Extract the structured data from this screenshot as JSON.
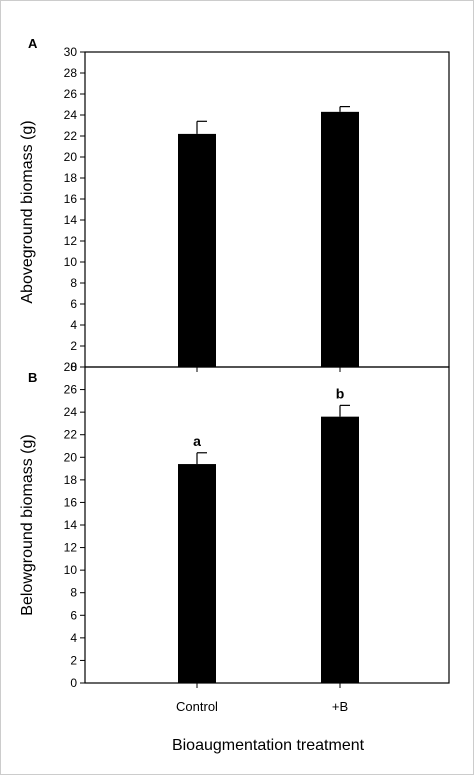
{
  "chart_data": [
    {
      "panel": "A",
      "type": "bar",
      "categories": [
        "Control",
        "+B"
      ],
      "values": [
        22.2,
        24.3
      ],
      "errors": [
        1.2,
        0.5
      ],
      "ylabel": "Aboveground biomass (g)",
      "ylim": [
        0,
        30
      ],
      "yticks": [
        0,
        2,
        4,
        6,
        8,
        10,
        12,
        14,
        16,
        18,
        20,
        22,
        24,
        26,
        28,
        30
      ],
      "significance": [
        "",
        ""
      ],
      "bar_color": "#000000"
    },
    {
      "panel": "B",
      "type": "bar",
      "categories": [
        "Control",
        "+B"
      ],
      "values": [
        19.4,
        23.6
      ],
      "errors": [
        1.0,
        1.0
      ],
      "ylabel": "Belowground biomass (g)",
      "ylim": [
        0,
        28
      ],
      "yticks": [
        0,
        2,
        4,
        6,
        8,
        10,
        12,
        14,
        16,
        18,
        20,
        22,
        24,
        26,
        28
      ],
      "significance": [
        "a",
        "b"
      ],
      "bar_color": "#000000"
    }
  ],
  "xlabel": "Bioaugmentation treatment"
}
